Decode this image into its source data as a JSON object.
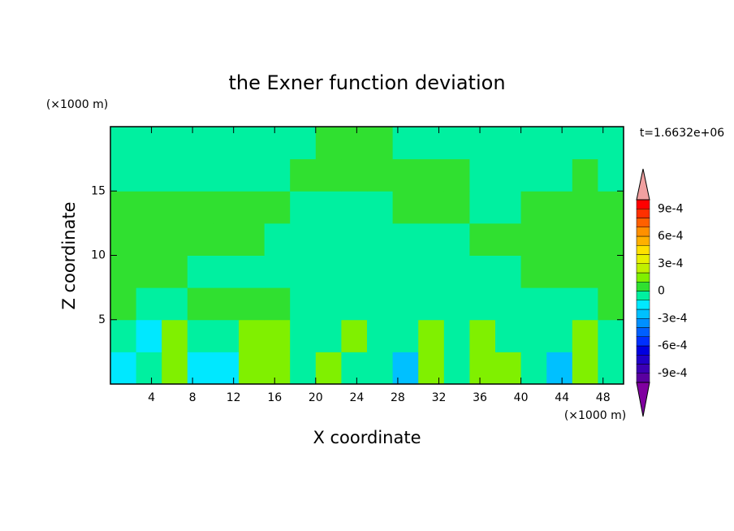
{
  "chart_data": {
    "type": "contour",
    "title": "the Exner function deviation",
    "x_label": "X coordinate",
    "y_label": "Z coordinate",
    "x_unit": "(×1000 m)",
    "y_unit": "(×1000 m)",
    "time_label": "t=1.6632e+06",
    "xlim": [
      0,
      50
    ],
    "ylim": [
      0,
      20
    ],
    "xticks": [
      4,
      8,
      12,
      16,
      20,
      24,
      28,
      32,
      36,
      40,
      44,
      48
    ],
    "yticks": [
      5,
      10,
      15
    ],
    "xbins": [
      0,
      2.5,
      5,
      7.5,
      10,
      12.5,
      15,
      17.5,
      20,
      22.5,
      25,
      27.5,
      30,
      32.5,
      35,
      37.5,
      40,
      42.5,
      45,
      47.5,
      50
    ],
    "ybins": [
      0,
      2.5,
      5,
      7.5,
      10,
      12.5,
      15,
      17.5,
      20
    ],
    "z": [
      [
        -0.00015,
        -5e-05,
        0.00015,
        -0.00015,
        -0.00015,
        0.00015,
        0.00015,
        -5e-05,
        0.00015,
        -5e-05,
        -5e-05,
        -0.00025,
        0.00015,
        -5e-05,
        0.00015,
        0.00015,
        -5e-05,
        -0.00025,
        0.00015,
        -5e-05
      ],
      [
        -5e-05,
        -0.00015,
        0.00015,
        -5e-05,
        -5e-05,
        0.00015,
        0.00015,
        -5e-05,
        -5e-05,
        0.00015,
        -5e-05,
        -5e-05,
        0.00015,
        -5e-05,
        0.00015,
        -5e-05,
        -5e-05,
        -5e-05,
        0.00015,
        -5e-05
      ],
      [
        5e-05,
        -5e-05,
        -5e-05,
        5e-05,
        5e-05,
        5e-05,
        5e-05,
        -5e-05,
        -5e-05,
        -5e-05,
        -5e-05,
        -5e-05,
        -5e-05,
        -5e-05,
        -5e-05,
        -5e-05,
        -5e-05,
        -5e-05,
        -5e-05,
        5e-05
      ],
      [
        5e-05,
        5e-05,
        5e-05,
        -5e-05,
        -5e-05,
        -5e-05,
        -5e-05,
        -5e-05,
        -5e-05,
        -5e-05,
        -5e-05,
        -5e-05,
        -5e-05,
        -5e-05,
        -5e-05,
        -5e-05,
        5e-05,
        5e-05,
        5e-05,
        5e-05
      ],
      [
        5e-05,
        5e-05,
        5e-05,
        5e-05,
        5e-05,
        5e-05,
        -5e-05,
        -5e-05,
        -5e-05,
        -5e-05,
        -5e-05,
        -5e-05,
        -5e-05,
        -5e-05,
        5e-05,
        5e-05,
        5e-05,
        5e-05,
        5e-05,
        5e-05
      ],
      [
        5e-05,
        5e-05,
        5e-05,
        5e-05,
        5e-05,
        5e-05,
        5e-05,
        -5e-05,
        -5e-05,
        -5e-05,
        -5e-05,
        5e-05,
        5e-05,
        5e-05,
        -5e-05,
        -5e-05,
        5e-05,
        5e-05,
        5e-05,
        5e-05
      ],
      [
        -5e-05,
        -5e-05,
        -5e-05,
        -5e-05,
        -5e-05,
        -5e-05,
        -5e-05,
        5e-05,
        5e-05,
        5e-05,
        5e-05,
        5e-05,
        5e-05,
        5e-05,
        -5e-05,
        -5e-05,
        -5e-05,
        -5e-05,
        5e-05,
        -5e-05
      ],
      [
        -5e-05,
        -5e-05,
        -5e-05,
        -5e-05,
        -5e-05,
        -5e-05,
        -5e-05,
        -5e-05,
        5e-05,
        5e-05,
        5e-05,
        -5e-05,
        -5e-05,
        -5e-05,
        -5e-05,
        -5e-05,
        -5e-05,
        -5e-05,
        -5e-05,
        -5e-05
      ]
    ],
    "levels": [
      -0.001,
      -0.0009,
      -0.0008,
      -0.0007,
      -0.0006,
      -0.0005,
      -0.0004,
      -0.0003,
      -0.0002,
      -0.0001,
      0,
      0.0001,
      0.0002,
      0.0003,
      0.0004,
      0.0005,
      0.0006,
      0.0007,
      0.0008,
      0.0009,
      0.001
    ],
    "colors": [
      "#5a00a0",
      "#3c00b4",
      "#2000c8",
      "#0000e0",
      "#0030ff",
      "#0060ff",
      "#0090ff",
      "#00c0ff",
      "#00e8ff",
      "#00f0a0",
      "#30e030",
      "#80f000",
      "#c0f000",
      "#e8f000",
      "#ffe000",
      "#ffb000",
      "#ff9000",
      "#ff6000",
      "#ff3000",
      "#ff0000"
    ],
    "extend_colors": [
      "#8000a0",
      "#f0a0a0"
    ],
    "cticks": [
      {
        "value": 0.0009,
        "label": "9e-4"
      },
      {
        "value": 0.0006,
        "label": "6e-4"
      },
      {
        "value": 0.0003,
        "label": "3e-4"
      },
      0,
      {
        "value": -0.0003,
        "label": "-3e-4"
      },
      {
        "value": -0.0006,
        "label": "-6e-4"
      },
      {
        "value": -0.0009,
        "label": "-9e-4"
      }
    ]
  }
}
